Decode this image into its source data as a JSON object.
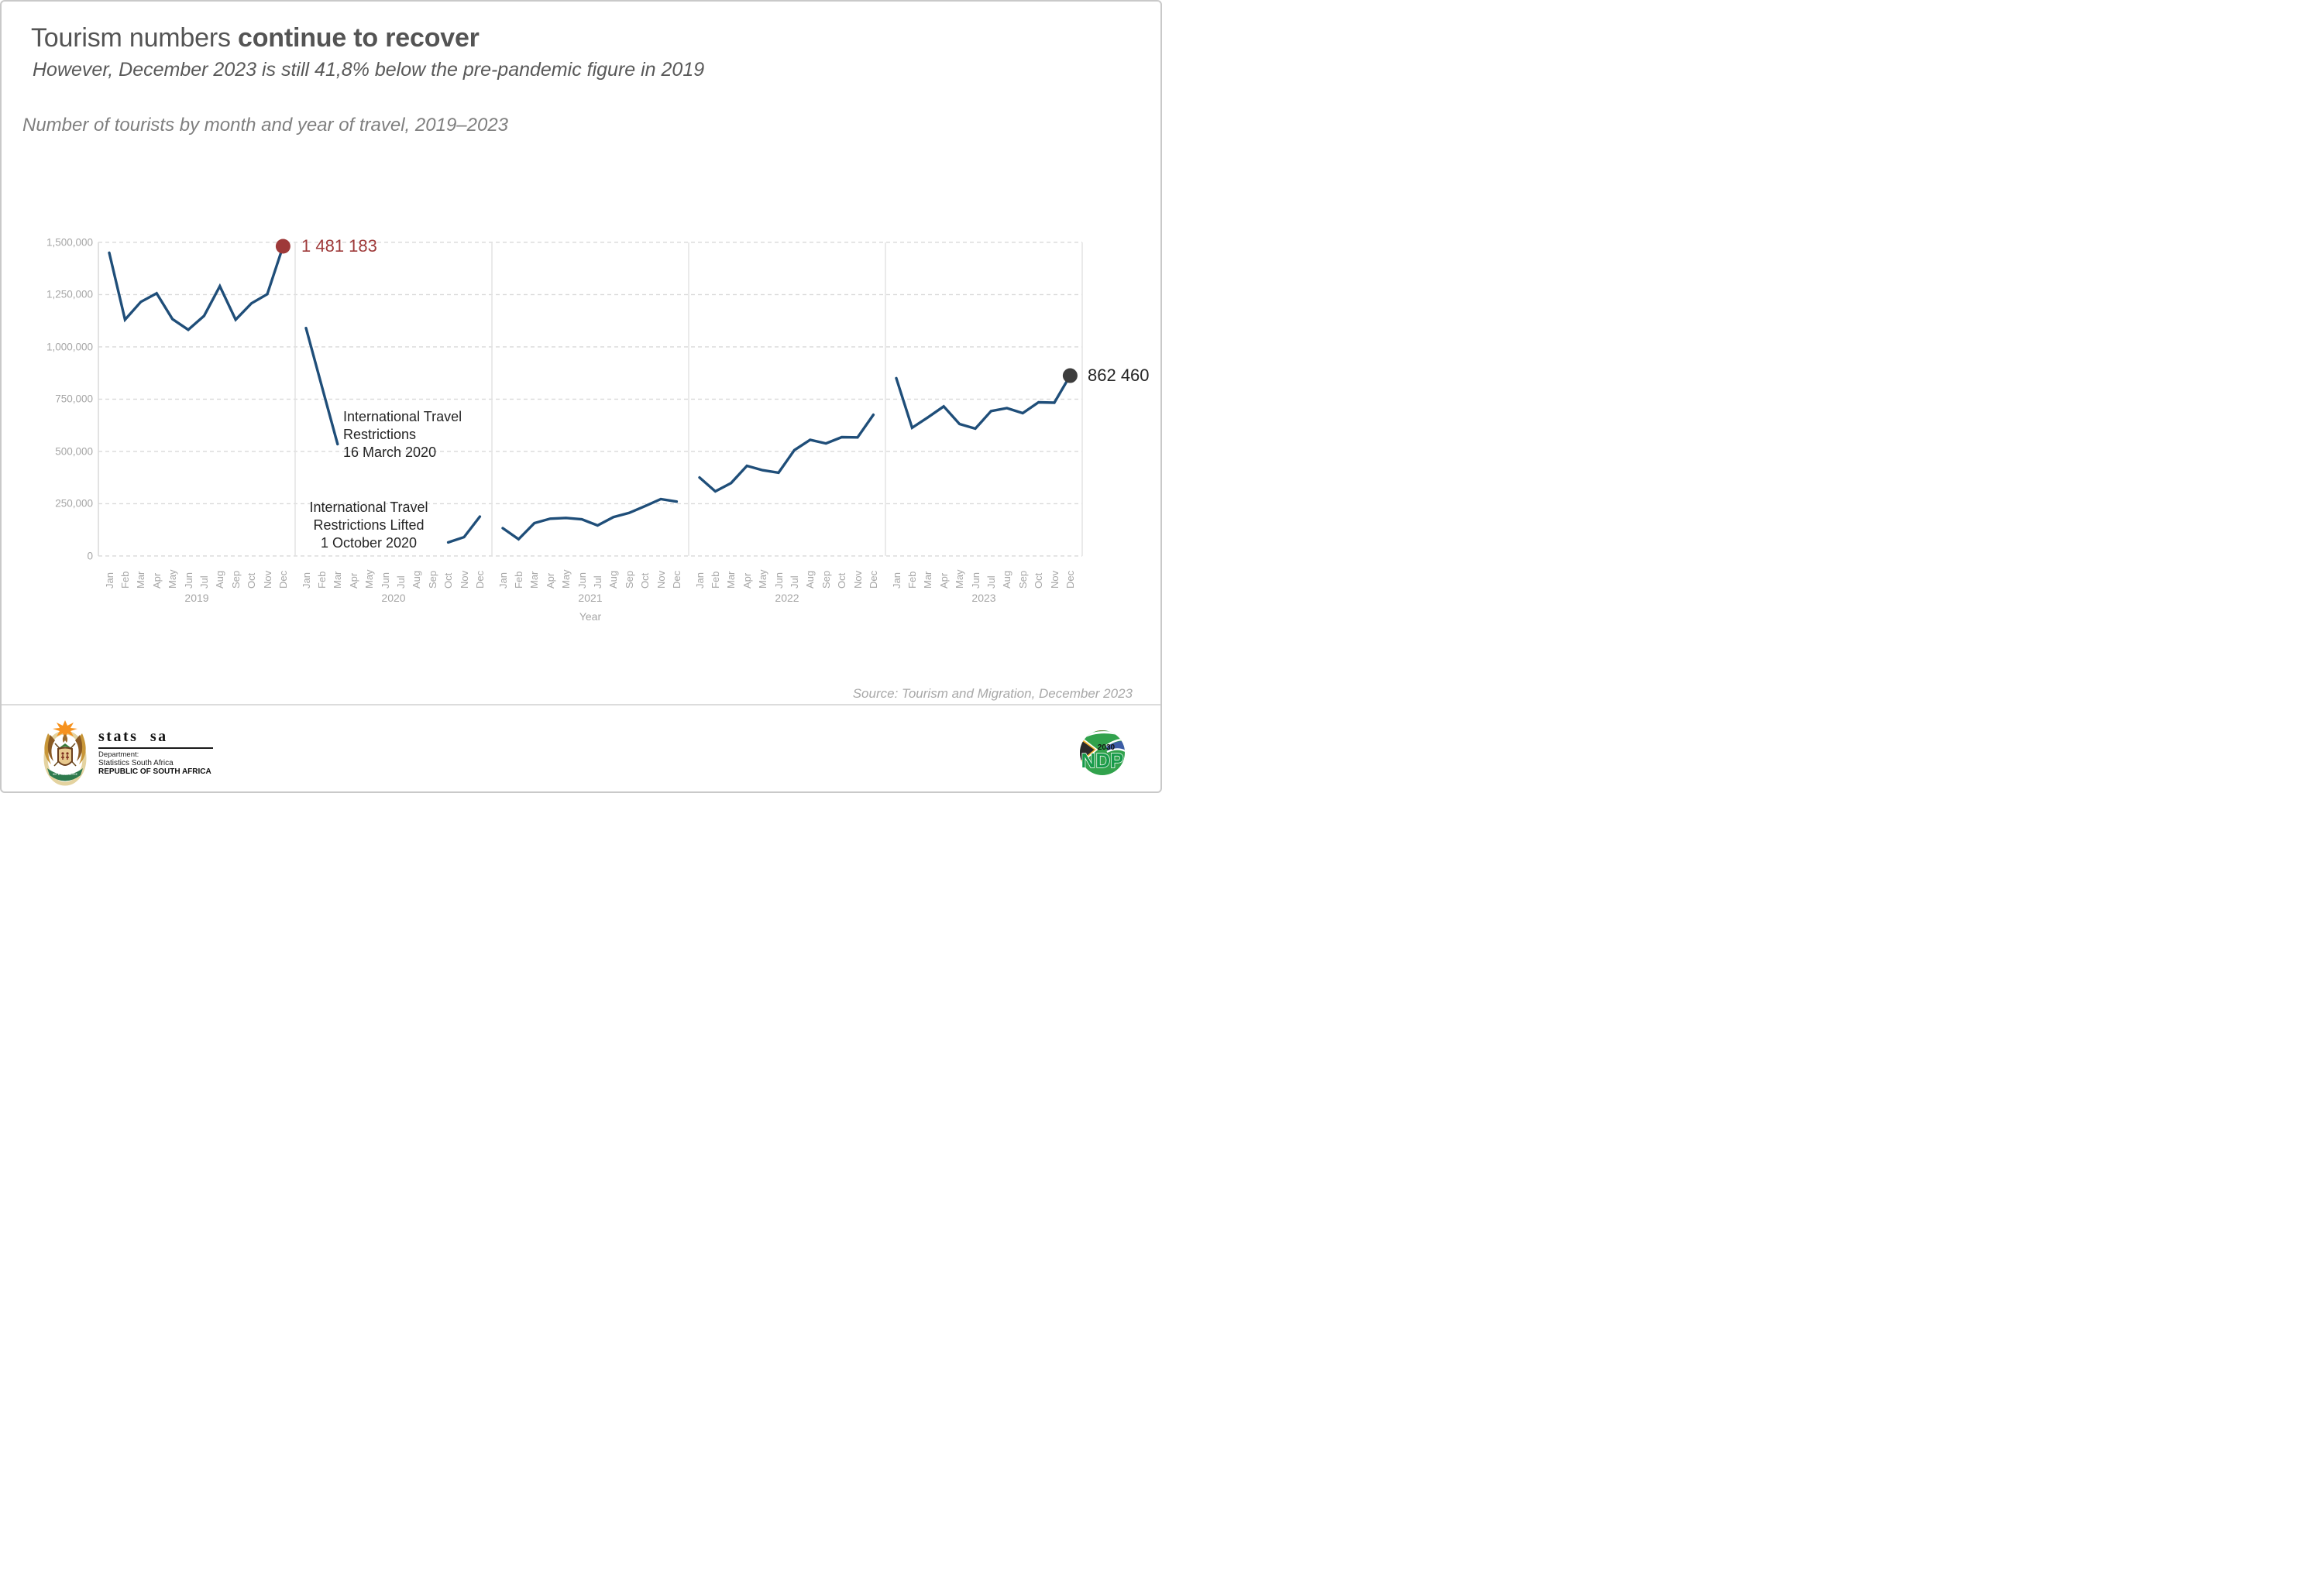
{
  "page": {
    "title_regular": "Tourism numbers ",
    "title_bold": "continue to recover",
    "subtitle": "However, December 2023 is still 41,8% below the pre-pandemic figure in 2019",
    "caption": "Number of tourists by month and year of travel, 2019–2023",
    "source": "Source: Tourism and Migration, December 2023"
  },
  "chart_data": {
    "type": "line",
    "title": "Number of tourists by month and year of travel, 2019–2023",
    "xlabel": "Year",
    "ylabel": "",
    "ylim": [
      0,
      1500000
    ],
    "grid": "horizontal-dashed",
    "legend_position": "none",
    "line_color": "#1f4e79",
    "y_ticks": [
      {
        "value": 1500000,
        "label": "1,500,000"
      },
      {
        "value": 1250000,
        "label": "1,250,000"
      },
      {
        "value": 1000000,
        "label": "1,000,000"
      },
      {
        "value": 750000,
        "label": "750,000"
      },
      {
        "value": 500000,
        "label": "500,000"
      },
      {
        "value": 250000,
        "label": "250,000"
      },
      {
        "value": 0,
        "label": "0"
      }
    ],
    "months": [
      "Jan",
      "Feb",
      "Mar",
      "Apr",
      "May",
      "Jun",
      "Jul",
      "Aug",
      "Sep",
      "Oct",
      "Nov",
      "Dec"
    ],
    "years": [
      "2019",
      "2020",
      "2021",
      "2022",
      "2023"
    ],
    "series": [
      {
        "name": "2019",
        "values": [
          1450000,
          1130000,
          1215000,
          1256000,
          1133000,
          1082000,
          1148000,
          1290000,
          1130000,
          1208000,
          1252000,
          1481183
        ]
      },
      {
        "name": "2020",
        "values": [
          1090000,
          812000,
          535000,
          null,
          null,
          null,
          null,
          null,
          null,
          65000,
          90000,
          188000
        ]
      },
      {
        "name": "2021",
        "values": [
          133000,
          80000,
          157000,
          178000,
          182000,
          175000,
          146000,
          186000,
          206000,
          238000,
          272000,
          260000
        ]
      },
      {
        "name": "2022",
        "values": [
          375000,
          309000,
          349000,
          431000,
          410000,
          398000,
          506000,
          555000,
          538000,
          568000,
          567000,
          675000
        ]
      },
      {
        "name": "2023",
        "values": [
          850000,
          613000,
          663000,
          715000,
          631000,
          609000,
          693000,
          707000,
          683000,
          735000,
          733000,
          862460
        ]
      }
    ],
    "highlights": [
      {
        "year": "2019",
        "month": "Dec",
        "value": 1481183,
        "label": "1 481 183",
        "color": "#9e3939"
      },
      {
        "year": "2023",
        "month": "Dec",
        "value": 862460,
        "label": "862 460",
        "color": "#3d3d3d",
        "label_color": "#262626"
      }
    ],
    "annotations": [
      {
        "text": "International Travel\nRestrictions\n16 March 2020",
        "align": "left"
      },
      {
        "text": "International Travel\nRestrictions Lifted\n1 October 2020",
        "align": "center"
      }
    ]
  },
  "footer": {
    "statssa": {
      "name": "stats sa",
      "dept_line1": "Department:",
      "dept_line2": "Statistics South Africa",
      "dept_line3": "REPUBLIC OF SOUTH AFRICA",
      "motto": "IKE E: /XARRA //KE"
    },
    "ndp": {
      "year": "2030",
      "acronym": "NDP"
    }
  }
}
